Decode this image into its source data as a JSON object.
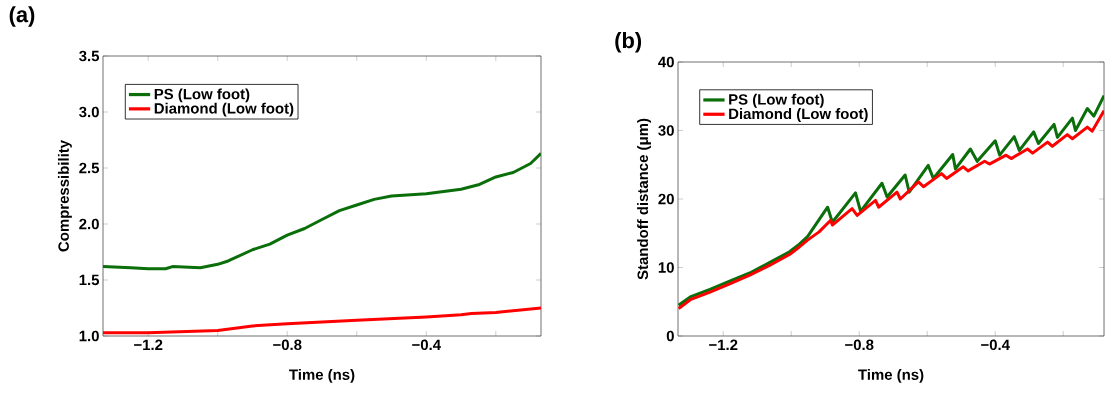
{
  "chart_data": [
    {
      "type": "line",
      "title": "(a)",
      "xlabel": "Time (ns)",
      "ylabel": "Compressibility",
      "xlim": [
        -1.33,
        -0.07
      ],
      "ylim": [
        1.0,
        3.5
      ],
      "xticks": [
        {
          "value": -1.2,
          "label": "−1.2"
        },
        {
          "value": -1.0,
          "label": null
        },
        {
          "value": -0.8,
          "label": "−0.8"
        },
        {
          "value": -0.6,
          "label": null
        },
        {
          "value": -0.4,
          "label": "−0.4"
        },
        {
          "value": -0.2,
          "label": null
        }
      ],
      "yticks": [
        {
          "value": 1.0,
          "label": "1.0"
        },
        {
          "value": 1.5,
          "label": "1.5"
        },
        {
          "value": 2.0,
          "label": "2.0"
        },
        {
          "value": 2.5,
          "label": "2.5"
        },
        {
          "value": 3.0,
          "label": "3.0"
        },
        {
          "value": 3.5,
          "label": "3.5"
        }
      ],
      "legend": "top left",
      "series": [
        {
          "name": "PS (Low foot)",
          "color": "#0a6e0a",
          "x": [
            -1.33,
            -1.25,
            -1.2,
            -1.15,
            -1.13,
            -1.05,
            -1.0,
            -0.97,
            -0.9,
            -0.85,
            -0.8,
            -0.75,
            -0.7,
            -0.65,
            -0.6,
            -0.55,
            -0.5,
            -0.4,
            -0.3,
            -0.25,
            -0.2,
            -0.15,
            -0.1,
            -0.07
          ],
          "values": [
            1.62,
            1.61,
            1.6,
            1.6,
            1.62,
            1.61,
            1.64,
            1.67,
            1.77,
            1.82,
            1.9,
            1.96,
            2.04,
            2.12,
            2.17,
            2.22,
            2.25,
            2.27,
            2.31,
            2.35,
            2.42,
            2.46,
            2.54,
            2.63
          ]
        },
        {
          "name": "Diamond (Low foot)",
          "color": "#ff0000",
          "x": [
            -1.33,
            -1.2,
            -1.0,
            -0.9,
            -0.8,
            -0.6,
            -0.4,
            -0.3,
            -0.27,
            -0.2,
            -0.07
          ],
          "values": [
            1.03,
            1.03,
            1.05,
            1.09,
            1.11,
            1.14,
            1.17,
            1.19,
            1.2,
            1.21,
            1.25
          ]
        }
      ]
    },
    {
      "type": "line",
      "title": "(b)",
      "xlabel": "Time (ns)",
      "ylabel": "Standoff distance (μm)",
      "xlim": [
        -1.333,
        -0.08
      ],
      "ylim": [
        0,
        40
      ],
      "xticks": [
        {
          "value": -1.2,
          "label": "−1.2"
        },
        {
          "value": -1.0,
          "label": null
        },
        {
          "value": -0.8,
          "label": "−0.8"
        },
        {
          "value": -0.6,
          "label": null
        },
        {
          "value": -0.4,
          "label": "−0.4"
        },
        {
          "value": -0.2,
          "label": null
        }
      ],
      "yticks": [
        0,
        10,
        20,
        30,
        40
      ],
      "legend": "top left",
      "series": [
        {
          "name": "PS (Low foot)",
          "color": "#0a6e0a",
          "x": [
            -1.331,
            -1.297,
            -1.239,
            -1.181,
            -1.122,
            -1.064,
            -1.005,
            -0.976,
            -0.952,
            -0.893,
            -0.879,
            -0.811,
            -0.796,
            -0.733,
            -0.718,
            -0.665,
            -0.653,
            -0.597,
            -0.582,
            -0.525,
            -0.517,
            -0.473,
            -0.453,
            -0.4,
            -0.387,
            -0.344,
            -0.329,
            -0.287,
            -0.273,
            -0.227,
            -0.217,
            -0.173,
            -0.164,
            -0.129,
            -0.11,
            -0.08
          ],
          "values": [
            4.5,
            5.7,
            6.8,
            8.0,
            9.2,
            10.7,
            12.3,
            13.4,
            14.5,
            18.8,
            16.6,
            20.9,
            18.2,
            22.3,
            20.3,
            23.5,
            21.0,
            24.9,
            23.0,
            26.5,
            24.4,
            27.3,
            25.5,
            28.5,
            26.4,
            29.1,
            27.1,
            29.8,
            28.1,
            30.9,
            29.0,
            31.8,
            30.0,
            33.2,
            32.1,
            35.1
          ]
        },
        {
          "name": "Diamond (Low foot)",
          "color": "#ff0000",
          "x": [
            -1.331,
            -1.297,
            -1.239,
            -1.181,
            -1.122,
            -1.064,
            -1.005,
            -0.976,
            -0.952,
            -0.918,
            -0.884,
            -0.879,
            -0.821,
            -0.806,
            -0.752,
            -0.743,
            -0.689,
            -0.679,
            -0.626,
            -0.611,
            -0.558,
            -0.543,
            -0.494,
            -0.48,
            -0.431,
            -0.417,
            -0.368,
            -0.353,
            -0.305,
            -0.29,
            -0.246,
            -0.232,
            -0.188,
            -0.173,
            -0.129,
            -0.115,
            -0.08
          ],
          "values": [
            4.0,
            5.3,
            6.4,
            7.6,
            8.9,
            10.3,
            11.9,
            13.0,
            14.0,
            15.2,
            16.9,
            16.2,
            18.6,
            17.6,
            19.8,
            18.8,
            21.0,
            20.0,
            22.5,
            21.8,
            23.7,
            23.0,
            24.7,
            24.1,
            25.5,
            25.1,
            26.4,
            25.9,
            27.3,
            26.7,
            28.3,
            27.7,
            29.4,
            28.8,
            30.5,
            29.9,
            32.9
          ]
        }
      ]
    }
  ]
}
